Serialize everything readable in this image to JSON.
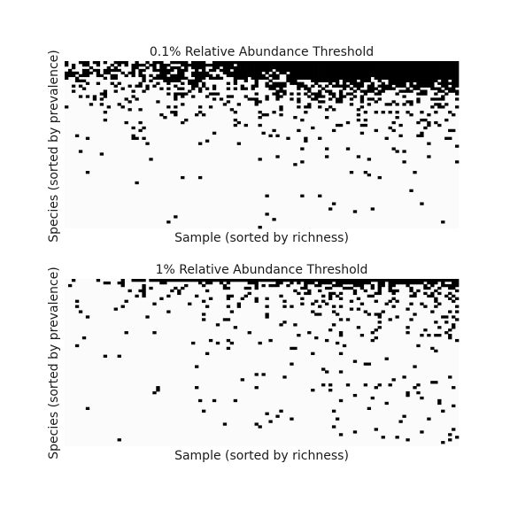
{
  "chart_data": [
    {
      "type": "heatmap",
      "title": "0.1% Relative Abundance Threshold",
      "xlabel": "Sample (sorted by richness)",
      "ylabel": "Species (sorted by prevalence)",
      "value_scale": "binary presence/absence",
      "colors": {
        "present": "#000000",
        "absent": "#fbfbfb"
      },
      "n_samples": 112,
      "n_species": 64,
      "prevalence_profile": [
        1.0,
        0.96,
        0.92,
        0.86,
        0.8,
        0.72,
        0.65,
        0.58,
        0.5,
        0.44,
        0.39,
        0.34,
        0.3,
        0.26,
        0.23,
        0.2,
        0.18,
        0.16,
        0.14,
        0.125,
        0.11,
        0.1,
        0.09,
        0.082,
        0.075,
        0.068,
        0.062,
        0.056,
        0.05,
        0.046,
        0.042,
        0.038,
        0.035,
        0.032,
        0.03,
        0.028,
        0.026,
        0.024,
        0.022,
        0.02,
        0.019,
        0.018,
        0.017,
        0.016,
        0.015,
        0.014,
        0.013,
        0.013,
        0.012,
        0.012,
        0.011,
        0.011,
        0.01,
        0.01,
        0.01,
        0.009,
        0.009,
        0.009,
        0.009,
        0.009,
        0.009,
        0.009,
        0.009,
        0.009
      ],
      "richness_range": [
        0.35,
        1.65
      ]
    },
    {
      "type": "heatmap",
      "title": "1% Relative Abundance Threshold",
      "xlabel": "Sample (sorted by richness)",
      "ylabel": "Species (sorted by prevalence)",
      "value_scale": "binary presence/absence",
      "colors": {
        "present": "#000000",
        "absent": "#fbfbfb"
      },
      "n_samples": 112,
      "n_species": 64,
      "prevalence_profile": [
        0.97,
        0.3,
        0.22,
        0.17,
        0.14,
        0.12,
        0.105,
        0.095,
        0.085,
        0.078,
        0.072,
        0.066,
        0.061,
        0.057,
        0.053,
        0.05,
        0.047,
        0.044,
        0.041,
        0.039,
        0.037,
        0.035,
        0.033,
        0.031,
        0.03,
        0.028,
        0.027,
        0.026,
        0.025,
        0.024,
        0.023,
        0.022,
        0.021,
        0.02,
        0.02,
        0.019,
        0.018,
        0.018,
        0.017,
        0.017,
        0.016,
        0.016,
        0.015,
        0.015,
        0.014,
        0.014,
        0.014,
        0.013,
        0.013,
        0.013,
        0.012,
        0.012,
        0.012,
        0.012,
        0.011,
        0.011,
        0.011,
        0.011,
        0.011,
        0.011,
        0.011,
        0.011,
        0.011,
        0.011
      ],
      "richness_range": [
        0.15,
        2.4
      ]
    }
  ]
}
